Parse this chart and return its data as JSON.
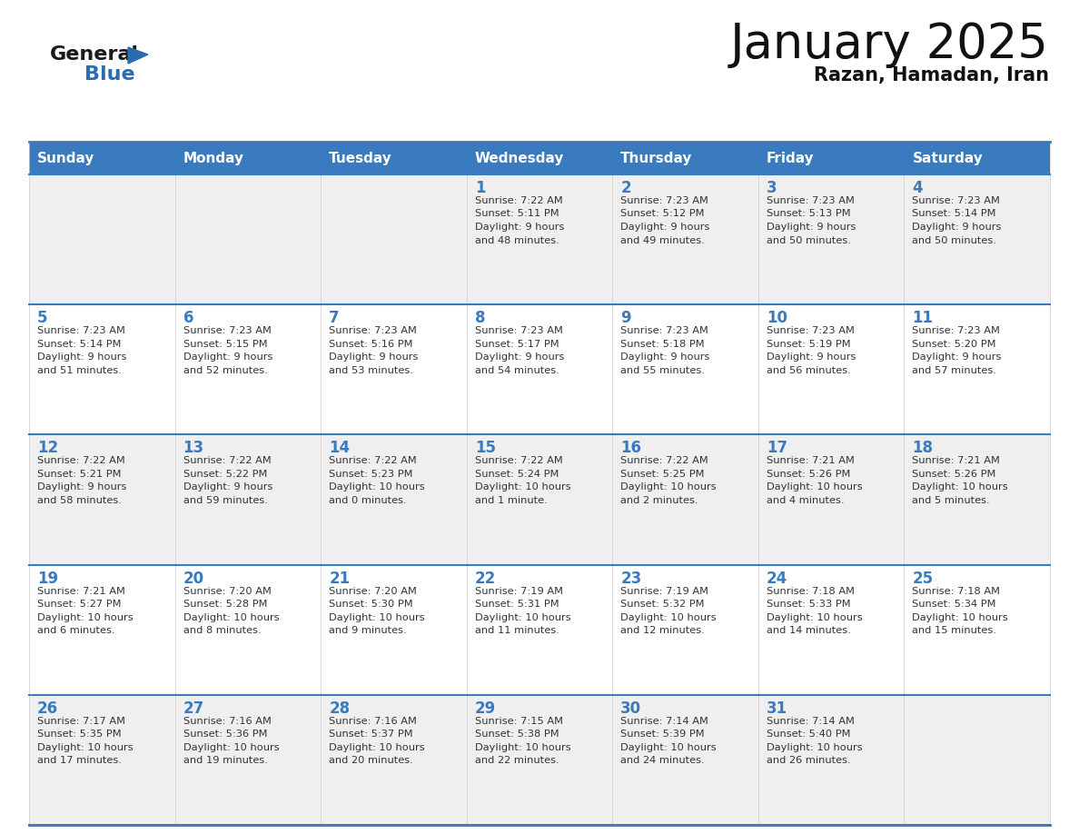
{
  "title": "January 2025",
  "subtitle": "Razan, Hamadan, Iran",
  "header_color": "#3a7abf",
  "header_text_color": "#ffffff",
  "row_bg_odd": "#efefef",
  "row_bg_even": "#ffffff",
  "day_number_color": "#3a7abf",
  "text_color": "#333333",
  "border_color": "#3a7abf",
  "days_of_week": [
    "Sunday",
    "Monday",
    "Tuesday",
    "Wednesday",
    "Thursday",
    "Friday",
    "Saturday"
  ],
  "calendar_data": [
    [
      {
        "day": "",
        "sunrise": "",
        "sunset": "",
        "daylight": ""
      },
      {
        "day": "",
        "sunrise": "",
        "sunset": "",
        "daylight": ""
      },
      {
        "day": "",
        "sunrise": "",
        "sunset": "",
        "daylight": ""
      },
      {
        "day": "1",
        "sunrise": "7:22 AM",
        "sunset": "5:11 PM",
        "daylight": "9 hours\nand 48 minutes."
      },
      {
        "day": "2",
        "sunrise": "7:23 AM",
        "sunset": "5:12 PM",
        "daylight": "9 hours\nand 49 minutes."
      },
      {
        "day": "3",
        "sunrise": "7:23 AM",
        "sunset": "5:13 PM",
        "daylight": "9 hours\nand 50 minutes."
      },
      {
        "day": "4",
        "sunrise": "7:23 AM",
        "sunset": "5:14 PM",
        "daylight": "9 hours\nand 50 minutes."
      }
    ],
    [
      {
        "day": "5",
        "sunrise": "7:23 AM",
        "sunset": "5:14 PM",
        "daylight": "9 hours\nand 51 minutes."
      },
      {
        "day": "6",
        "sunrise": "7:23 AM",
        "sunset": "5:15 PM",
        "daylight": "9 hours\nand 52 minutes."
      },
      {
        "day": "7",
        "sunrise": "7:23 AM",
        "sunset": "5:16 PM",
        "daylight": "9 hours\nand 53 minutes."
      },
      {
        "day": "8",
        "sunrise": "7:23 AM",
        "sunset": "5:17 PM",
        "daylight": "9 hours\nand 54 minutes."
      },
      {
        "day": "9",
        "sunrise": "7:23 AM",
        "sunset": "5:18 PM",
        "daylight": "9 hours\nand 55 minutes."
      },
      {
        "day": "10",
        "sunrise": "7:23 AM",
        "sunset": "5:19 PM",
        "daylight": "9 hours\nand 56 minutes."
      },
      {
        "day": "11",
        "sunrise": "7:23 AM",
        "sunset": "5:20 PM",
        "daylight": "9 hours\nand 57 minutes."
      }
    ],
    [
      {
        "day": "12",
        "sunrise": "7:22 AM",
        "sunset": "5:21 PM",
        "daylight": "9 hours\nand 58 minutes."
      },
      {
        "day": "13",
        "sunrise": "7:22 AM",
        "sunset": "5:22 PM",
        "daylight": "9 hours\nand 59 minutes."
      },
      {
        "day": "14",
        "sunrise": "7:22 AM",
        "sunset": "5:23 PM",
        "daylight": "10 hours\nand 0 minutes."
      },
      {
        "day": "15",
        "sunrise": "7:22 AM",
        "sunset": "5:24 PM",
        "daylight": "10 hours\nand 1 minute."
      },
      {
        "day": "16",
        "sunrise": "7:22 AM",
        "sunset": "5:25 PM",
        "daylight": "10 hours\nand 2 minutes."
      },
      {
        "day": "17",
        "sunrise": "7:21 AM",
        "sunset": "5:26 PM",
        "daylight": "10 hours\nand 4 minutes."
      },
      {
        "day": "18",
        "sunrise": "7:21 AM",
        "sunset": "5:26 PM",
        "daylight": "10 hours\nand 5 minutes."
      }
    ],
    [
      {
        "day": "19",
        "sunrise": "7:21 AM",
        "sunset": "5:27 PM",
        "daylight": "10 hours\nand 6 minutes."
      },
      {
        "day": "20",
        "sunrise": "7:20 AM",
        "sunset": "5:28 PM",
        "daylight": "10 hours\nand 8 minutes."
      },
      {
        "day": "21",
        "sunrise": "7:20 AM",
        "sunset": "5:30 PM",
        "daylight": "10 hours\nand 9 minutes."
      },
      {
        "day": "22",
        "sunrise": "7:19 AM",
        "sunset": "5:31 PM",
        "daylight": "10 hours\nand 11 minutes."
      },
      {
        "day": "23",
        "sunrise": "7:19 AM",
        "sunset": "5:32 PM",
        "daylight": "10 hours\nand 12 minutes."
      },
      {
        "day": "24",
        "sunrise": "7:18 AM",
        "sunset": "5:33 PM",
        "daylight": "10 hours\nand 14 minutes."
      },
      {
        "day": "25",
        "sunrise": "7:18 AM",
        "sunset": "5:34 PM",
        "daylight": "10 hours\nand 15 minutes."
      }
    ],
    [
      {
        "day": "26",
        "sunrise": "7:17 AM",
        "sunset": "5:35 PM",
        "daylight": "10 hours\nand 17 minutes."
      },
      {
        "day": "27",
        "sunrise": "7:16 AM",
        "sunset": "5:36 PM",
        "daylight": "10 hours\nand 19 minutes."
      },
      {
        "day": "28",
        "sunrise": "7:16 AM",
        "sunset": "5:37 PM",
        "daylight": "10 hours\nand 20 minutes."
      },
      {
        "day": "29",
        "sunrise": "7:15 AM",
        "sunset": "5:38 PM",
        "daylight": "10 hours\nand 22 minutes."
      },
      {
        "day": "30",
        "sunrise": "7:14 AM",
        "sunset": "5:39 PM",
        "daylight": "10 hours\nand 24 minutes."
      },
      {
        "day": "31",
        "sunrise": "7:14 AM",
        "sunset": "5:40 PM",
        "daylight": "10 hours\nand 26 minutes."
      },
      {
        "day": "",
        "sunrise": "",
        "sunset": "",
        "daylight": ""
      }
    ]
  ]
}
